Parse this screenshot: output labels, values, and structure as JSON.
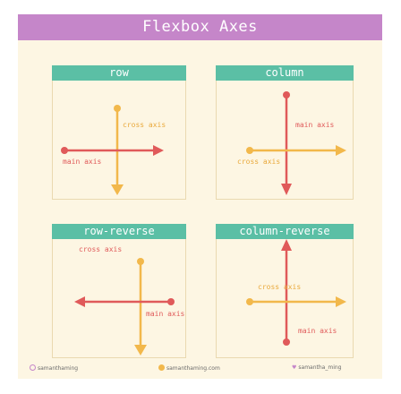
{
  "title": "Flexbox Axes",
  "panels": {
    "row": {
      "header": "row",
      "main_label": "main axis",
      "cross_label": "cross axis"
    },
    "column": {
      "header": "column",
      "main_label": "main axis",
      "cross_label": "cross axis"
    },
    "row_reverse": {
      "header": "row-reverse",
      "main_label": "main axis",
      "cross_label": "cross axis"
    },
    "column_reverse": {
      "header": "column-reverse",
      "main_label": "main axis",
      "cross_label": "cross axis"
    }
  },
  "footer": {
    "instagram": "samanthaming",
    "website": "samanthaming.com",
    "twitter": "samantha_ming"
  },
  "colors": {
    "title_bg": "#c586c9",
    "header_bg": "#5bbfa5",
    "main_axis": "#e05a5a",
    "cross_axis": "#f2b84b",
    "background": "#fdf6e3"
  },
  "icons": [
    "instagram-icon",
    "website-icon",
    "twitter-icon"
  ]
}
